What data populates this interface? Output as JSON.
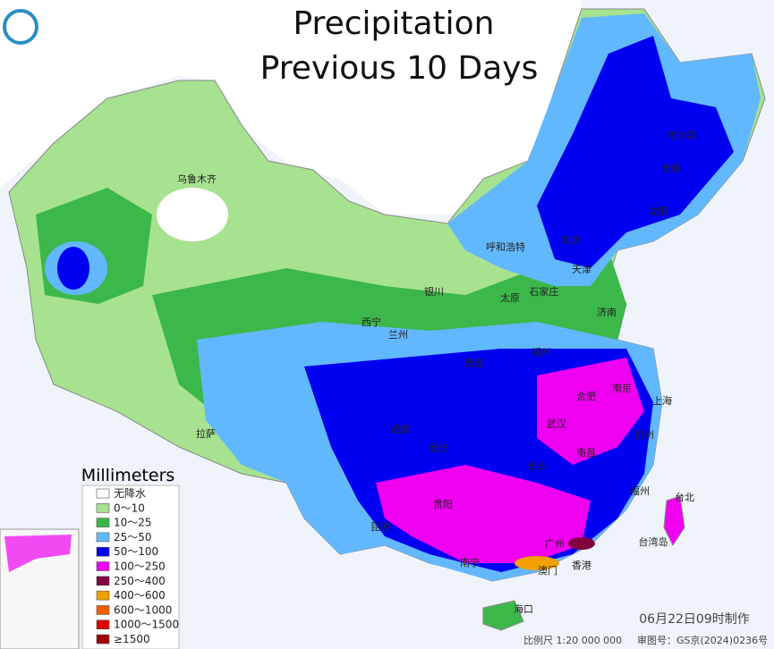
{
  "header": {
    "title_line1": "Precipitation",
    "title_line2": "Previous 10 Days"
  },
  "legend": {
    "title": "Millimeters",
    "items": [
      {
        "label": "无降水",
        "color": "#ffffff"
      },
      {
        "label": "0～10",
        "color": "#a6e28f"
      },
      {
        "label": "10～25",
        "color": "#3cb84a"
      },
      {
        "label": "25～50",
        "color": "#62b8ff"
      },
      {
        "label": "50～100",
        "color": "#0000f0"
      },
      {
        "label": "100～250",
        "color": "#f000f0"
      },
      {
        "label": "250～400",
        "color": "#800040"
      },
      {
        "label": "400～600",
        "color": "#f0a000"
      },
      {
        "label": "600～1000",
        "color": "#f06000"
      },
      {
        "label": "1000～1500",
        "color": "#e00000"
      },
      {
        "label": "≥1500",
        "color": "#a00000"
      }
    ]
  },
  "cities": [
    "乌鲁木齐",
    "哈尔滨",
    "长春",
    "沈阳",
    "北京",
    "天津",
    "呼和浩特",
    "石家庄",
    "太原",
    "银川",
    "济南",
    "西宁",
    "兰州",
    "西安",
    "郑州",
    "合肥",
    "南京",
    "上海",
    "武汉",
    "拉萨",
    "成都",
    "重庆",
    "长沙",
    "杭州",
    "南昌",
    "福州",
    "贵阳",
    "昆明",
    "南宁",
    "广州",
    "香港",
    "澳门",
    "台北",
    "海口",
    "台湾岛"
  ],
  "footer": {
    "timestamp": "06月22日09时制作",
    "scale": "比例尺 1:20 000 000",
    "approval": "审图号：GS京(2024)0236号"
  }
}
